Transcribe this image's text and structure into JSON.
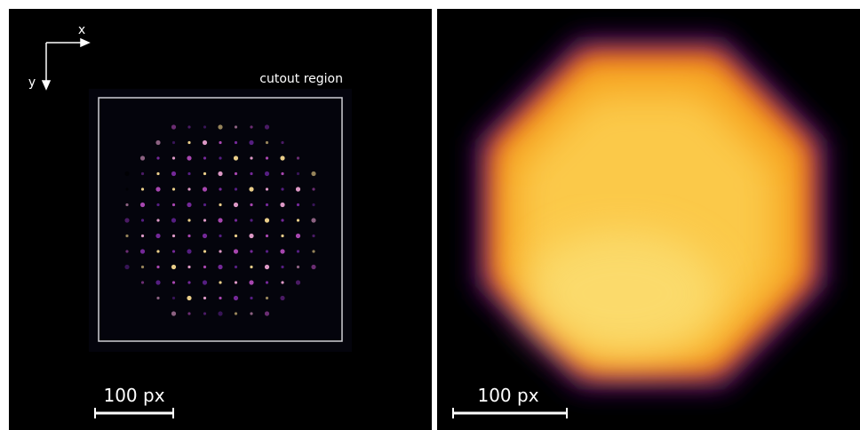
{
  "left_panel": {
    "axis_x": "x",
    "axis_y": "y",
    "region_label": "cutout region",
    "scale_label": "100 px"
  },
  "right_panel": {
    "scale_label": "100 px"
  }
}
